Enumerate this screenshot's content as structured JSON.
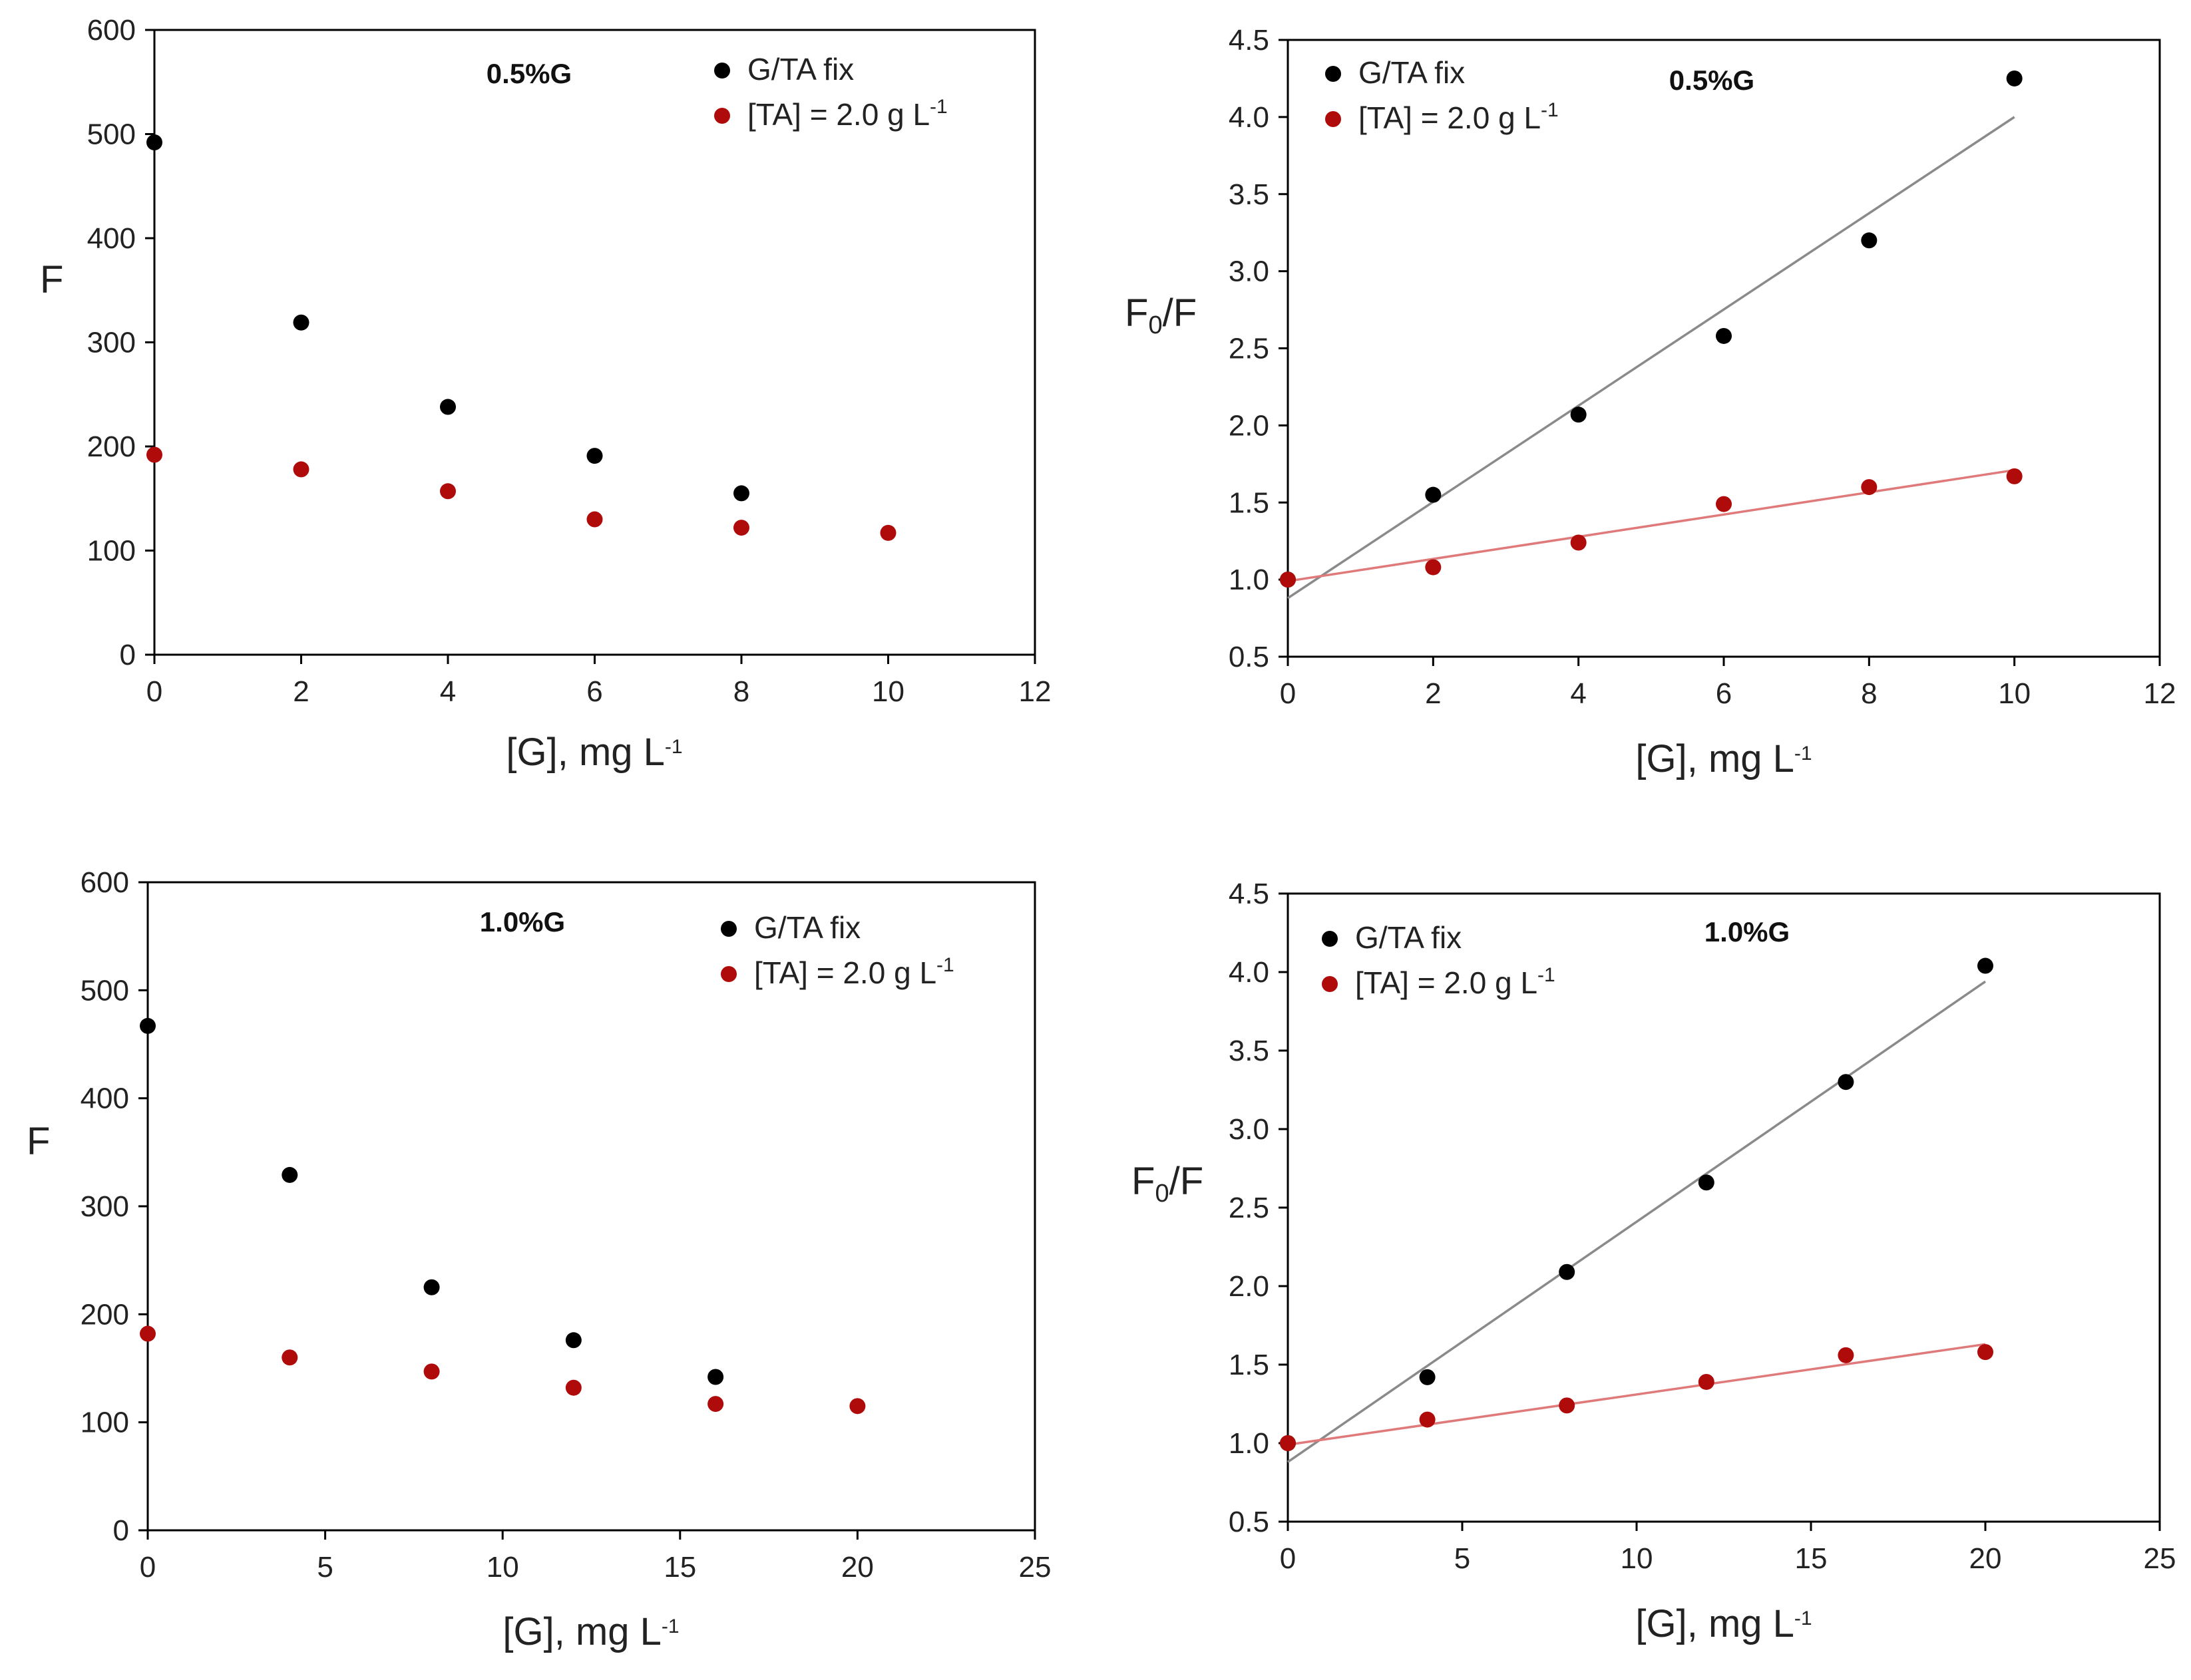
{
  "colors": {
    "series_black": "#000000",
    "series_red": "#b00b0b",
    "fit_black": "#8a8a8a",
    "fit_red": "#e07a7a",
    "axis": "#000000"
  },
  "chart_data": [
    {
      "id": "top-left",
      "type": "scatter",
      "title": "0.5%G",
      "xlabel": "[G], mg L",
      "xlabel_sup": "-1",
      "ylabel": "F",
      "ylabel_sub": "",
      "ylabel_tail": "",
      "xlim": [
        0,
        12
      ],
      "ylim": [
        0,
        600
      ],
      "xticks": [
        0,
        2,
        4,
        6,
        8,
        10,
        12
      ],
      "yticks": [
        0,
        100,
        200,
        300,
        400,
        500,
        600
      ],
      "ytick_labels": [
        "0",
        "100",
        "200",
        "300",
        "400",
        "500",
        "600"
      ],
      "legend": [
        {
          "label": "G/TA fix",
          "sup": "",
          "color": "#000000"
        },
        {
          "label": "[TA] = 2.0 g L",
          "sup": "-1",
          "color": "#b00b0b"
        }
      ],
      "series": [
        {
          "name": "G/TA fix",
          "color": "#000000",
          "x": [
            0,
            2,
            4,
            6,
            8
          ],
          "y": [
            492,
            319,
            238,
            191,
            155
          ]
        },
        {
          "name": "[TA] = 2.0 g L-1",
          "color": "#b00b0b",
          "x": [
            0,
            2,
            4,
            6,
            8,
            10
          ],
          "y": [
            192,
            178,
            157,
            130,
            122,
            117
          ]
        }
      ],
      "fits": []
    },
    {
      "id": "top-right",
      "type": "scatter",
      "title": "0.5%G",
      "xlabel": "[G], mg L",
      "xlabel_sup": "-1",
      "ylabel": "F",
      "ylabel_sub": "0",
      "ylabel_tail": "/F",
      "xlim": [
        0,
        12
      ],
      "ylim": [
        0.5,
        4.5
      ],
      "xticks": [
        0,
        2,
        4,
        6,
        8,
        10,
        12
      ],
      "yticks": [
        0.5,
        1.0,
        1.5,
        2.0,
        2.5,
        3.0,
        3.5,
        4.0,
        4.5
      ],
      "ytick_labels": [
        "0.5",
        "1.0",
        "1.5",
        "2.0",
        "2.5",
        "3.0",
        "3.5",
        "4.0",
        "4.5"
      ],
      "legend": [
        {
          "label": "G/TA fix",
          "sup": "",
          "color": "#000000"
        },
        {
          "label": "[TA] = 2.0 g L",
          "sup": "-1",
          "color": "#b00b0b"
        }
      ],
      "series": [
        {
          "name": "G/TA fix",
          "color": "#000000",
          "x": [
            0,
            2,
            4,
            6,
            8,
            10
          ],
          "y": [
            1.0,
            1.55,
            2.07,
            2.58,
            3.2,
            4.25
          ]
        },
        {
          "name": "[TA] = 2.0 g L-1",
          "color": "#b00b0b",
          "x": [
            0,
            2,
            4,
            6,
            8,
            10
          ],
          "y": [
            1.0,
            1.08,
            1.24,
            1.49,
            1.6,
            1.67
          ]
        }
      ],
      "fits": [
        {
          "color": "#8a8a8a",
          "x": [
            0,
            10
          ],
          "y": [
            0.88,
            4.0
          ]
        },
        {
          "color": "#e07a7a",
          "x": [
            0,
            10
          ],
          "y": [
            0.99,
            1.71
          ]
        }
      ]
    },
    {
      "id": "bottom-left",
      "type": "scatter",
      "title": "1.0%G",
      "xlabel": "[G], mg L",
      "xlabel_sup": "-1",
      "ylabel": "F",
      "ylabel_sub": "",
      "ylabel_tail": "",
      "xlim": [
        0,
        25
      ],
      "ylim": [
        0,
        600
      ],
      "xticks": [
        0,
        5,
        10,
        15,
        20,
        25
      ],
      "yticks": [
        0,
        100,
        200,
        300,
        400,
        500,
        600
      ],
      "ytick_labels": [
        "0",
        "100",
        "200",
        "300",
        "400",
        "500",
        "600"
      ],
      "legend": [
        {
          "label": "G/TA fix",
          "sup": "",
          "color": "#000000"
        },
        {
          "label": "[TA] = 2.0 g L",
          "sup": "-1",
          "color": "#b00b0b"
        }
      ],
      "series": [
        {
          "name": "G/TA fix",
          "color": "#000000",
          "x": [
            0,
            4,
            8,
            12,
            16
          ],
          "y": [
            467,
            329,
            225,
            176,
            142
          ]
        },
        {
          "name": "[TA] = 2.0 g L-1",
          "color": "#b00b0b",
          "x": [
            0,
            4,
            8,
            12,
            16,
            20
          ],
          "y": [
            182,
            160,
            147,
            132,
            117,
            115
          ]
        }
      ],
      "fits": []
    },
    {
      "id": "bottom-right",
      "type": "scatter",
      "title": "1.0%G",
      "xlabel": "[G], mg L",
      "xlabel_sup": "-1",
      "ylabel": "F",
      "ylabel_sub": "0",
      "ylabel_tail": "/F",
      "xlim": [
        0,
        25
      ],
      "ylim": [
        0.5,
        4.5
      ],
      "xticks": [
        0,
        5,
        10,
        15,
        20,
        25
      ],
      "yticks": [
        0.5,
        1.0,
        1.5,
        2.0,
        2.5,
        3.0,
        3.5,
        4.0,
        4.5
      ],
      "ytick_labels": [
        "0.5",
        "1.0",
        "1.5",
        "2.0",
        "2.5",
        "3.0",
        "3.5",
        "4.0",
        "4.5"
      ],
      "legend": [
        {
          "label": "G/TA fix",
          "sup": "",
          "color": "#000000"
        },
        {
          "label": "[TA] = 2.0 g L",
          "sup": "-1",
          "color": "#b00b0b"
        }
      ],
      "series": [
        {
          "name": "G/TA fix",
          "color": "#000000",
          "x": [
            0,
            4,
            8,
            12,
            16,
            20
          ],
          "y": [
            1.0,
            1.42,
            2.09,
            2.66,
            3.3,
            4.04
          ]
        },
        {
          "name": "[TA] = 2.0 g L-1",
          "color": "#b00b0b",
          "x": [
            0,
            4,
            8,
            12,
            16,
            20
          ],
          "y": [
            1.0,
            1.15,
            1.24,
            1.39,
            1.56,
            1.58
          ]
        }
      ],
      "fits": [
        {
          "color": "#8a8a8a",
          "x": [
            0,
            20
          ],
          "y": [
            0.88,
            3.94
          ]
        },
        {
          "color": "#e07a7a",
          "x": [
            0,
            20
          ],
          "y": [
            0.99,
            1.63
          ]
        }
      ]
    }
  ]
}
